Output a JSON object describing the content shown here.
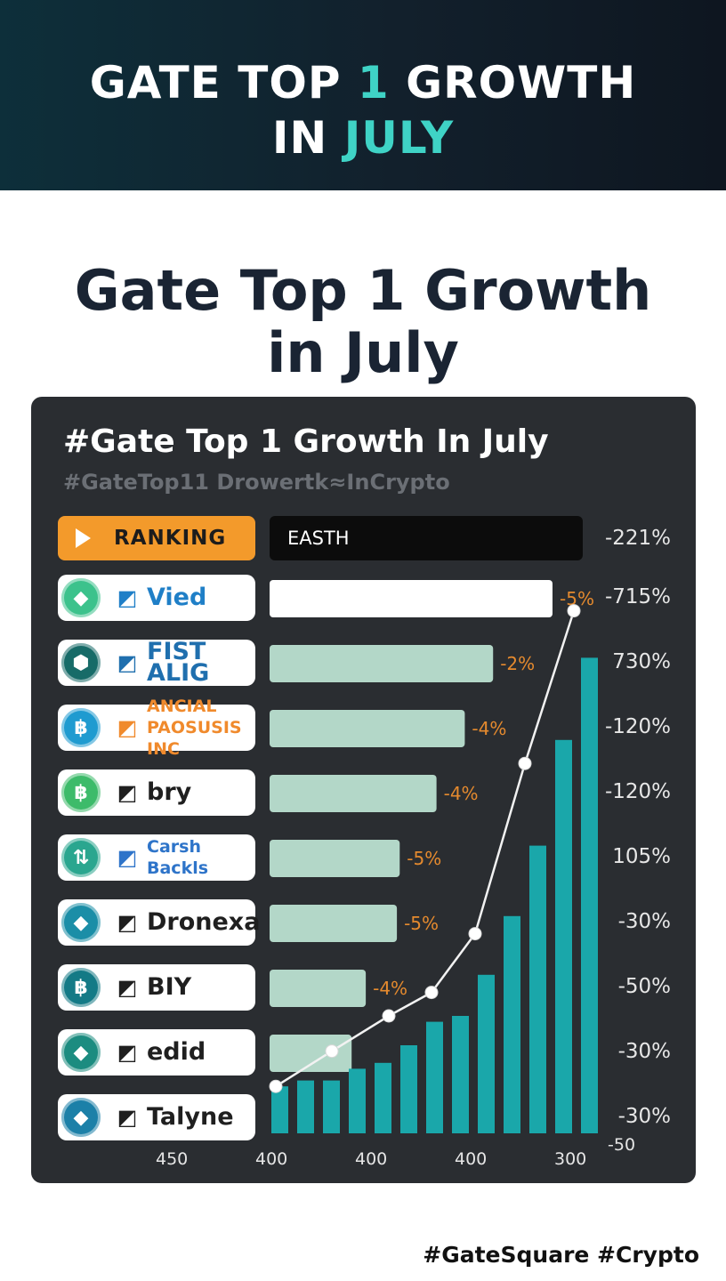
{
  "banner": {
    "title_line1_a": "GATE TOP ",
    "title_line1_b": "1",
    "title_line1_c": " GROWTH",
    "title_line2_a": "IN ",
    "title_line2_b": "JULY"
  },
  "page_title": {
    "line1": "Gate Top 1 Growth",
    "line2": "in July"
  },
  "panel": {
    "title": "#Gate Top 1 Growth In July",
    "subtitle": "#GateTop11 Drowertk≈InCrypto",
    "ranking_label": "RANKING",
    "header_bar_label": "EASTH",
    "header_right_label": "-221%"
  },
  "rows": [
    {
      "brand_name": "Vied",
      "coin_color": "#3cc28c",
      "coin_icon": "diamond-icon",
      "brand_color": "#1f7fc7",
      "pct_label": "-5%",
      "right_label": "-715%"
    },
    {
      "brand_name": "FIST ALIG",
      "coin_color": "#176b68",
      "coin_icon": "hexagon-icon",
      "brand_color": "#1f6fae",
      "pct_label": "-2%",
      "right_label": "730%"
    },
    {
      "brand_name": "ANCIAL PAOSUSIS INC",
      "coin_color": "#1f9bd0",
      "coin_icon": "bitcoin-icon",
      "brand_color": "#f08a2c",
      "pct_label": "-4%",
      "right_label": "-120%"
    },
    {
      "brand_name": "bry",
      "coin_color": "#3dbb6a",
      "coin_icon": "bitcoin-icon",
      "brand_color": "#1f1f1f",
      "pct_label": "-4%",
      "right_label": "-120%"
    },
    {
      "brand_name": "Carsh Backls",
      "coin_color": "#2aa68f",
      "coin_icon": "arrows-icon",
      "brand_color": "#2e74c9",
      "pct_label": "-5%",
      "right_label": "105%"
    },
    {
      "brand_name": "Dronexa",
      "coin_color": "#1b8ea7",
      "coin_icon": "diamond-icon",
      "brand_color": "#1f1f1f",
      "pct_label": "-5%",
      "right_label": "-30%"
    },
    {
      "brand_name": "BIY",
      "coin_color": "#147a86",
      "coin_icon": "bitcoin-icon",
      "brand_color": "#1f1f1f",
      "pct_label": "-4%",
      "right_label": "-50%"
    },
    {
      "brand_name": "edid",
      "coin_color": "#1c8c80",
      "coin_icon": "diamond-icon",
      "brand_color": "#1f1f1f",
      "pct_label": "",
      "right_label": "-30%"
    },
    {
      "brand_name": "Talyne",
      "coin_color": "#1c80a8",
      "coin_icon": "diamond-icon",
      "brand_color": "#1f1f1f",
      "pct_label": "",
      "right_label": "-30%"
    }
  ],
  "x_labels": [
    "450",
    "400",
    "400",
    "400",
    "300",
    "-50"
  ],
  "hashtags": "#GateSquare  #Crypto",
  "chart_data": {
    "type": "bar",
    "title": "#Gate Top 1 Growth In July",
    "bar_fill_fraction": [
      1.0,
      0.79,
      0.69,
      0.59,
      0.46,
      0.45,
      0.34,
      0.29
    ],
    "column_series": [
      0.08,
      0.09,
      0.09,
      0.11,
      0.12,
      0.15,
      0.19,
      0.2,
      0.27,
      0.37,
      0.49,
      0.67,
      0.81
    ],
    "line_series": [
      0.08,
      0.14,
      0.2,
      0.24,
      0.34,
      0.63,
      0.89
    ]
  }
}
